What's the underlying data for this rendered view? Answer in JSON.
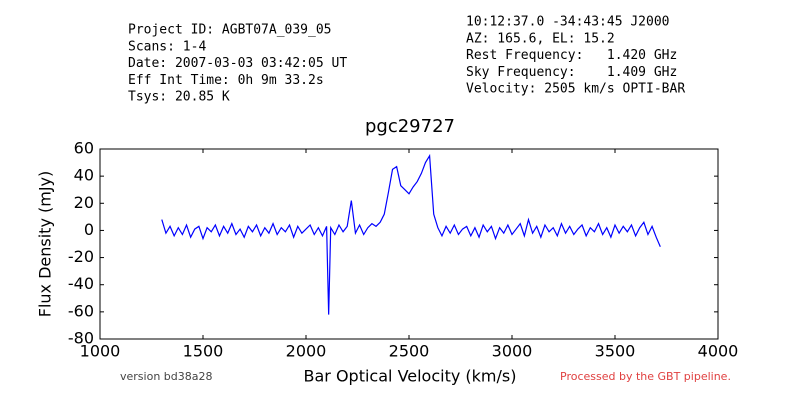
{
  "chart_data": {
    "type": "line",
    "title": "pgc29727",
    "xlabel": "Bar Optical Velocity (km/s)",
    "ylabel": "Flux Density (mJy)",
    "header_left": [
      "Project ID: AGBT07A_039_05",
      "Scans: 1-4",
      "Date: 2007-03-03 03:42:05 UT",
      "Eff Int Time: 0h 9m 33.2s",
      "Tsys: 20.85 K"
    ],
    "header_right": [
      "10:12:37.0 -34:43:45 J2000",
      "AZ: 165.6, EL: 15.2",
      "Rest Frequency:   1.420 GHz",
      "Sky Frequency:    1.409 GHz",
      "Velocity: 2505 km/s OPTI-BAR"
    ],
    "footer_left": "version bd38a28",
    "footer_right": "Processed by the GBT pipeline.",
    "color": "#0000ff",
    "x": [
      1300,
      1320,
      1340,
      1360,
      1380,
      1400,
      1420,
      1440,
      1460,
      1480,
      1500,
      1520,
      1540,
      1560,
      1580,
      1600,
      1620,
      1640,
      1660,
      1680,
      1700,
      1720,
      1740,
      1760,
      1780,
      1800,
      1820,
      1840,
      1860,
      1880,
      1900,
      1920,
      1940,
      1960,
      1980,
      2000,
      2020,
      2040,
      2060,
      2080,
      2100,
      2110,
      2120,
      2140,
      2160,
      2180,
      2200,
      2220,
      2240,
      2260,
      2280,
      2300,
      2320,
      2340,
      2360,
      2380,
      2400,
      2420,
      2440,
      2460,
      2480,
      2500,
      2520,
      2540,
      2560,
      2580,
      2600,
      2620,
      2640,
      2660,
      2680,
      2700,
      2720,
      2740,
      2760,
      2780,
      2800,
      2820,
      2840,
      2860,
      2880,
      2900,
      2920,
      2940,
      2960,
      2980,
      3000,
      3020,
      3040,
      3060,
      3080,
      3100,
      3120,
      3140,
      3160,
      3180,
      3200,
      3220,
      3240,
      3260,
      3280,
      3300,
      3320,
      3340,
      3360,
      3380,
      3400,
      3420,
      3440,
      3460,
      3480,
      3500,
      3520,
      3540,
      3560,
      3580,
      3600,
      3620,
      3640,
      3660,
      3680,
      3700,
      3720
    ],
    "values": [
      8,
      -2,
      3,
      -4,
      2,
      -3,
      4,
      -5,
      1,
      3,
      -6,
      2,
      -1,
      4,
      -4,
      3,
      -2,
      5,
      -3,
      1,
      -5,
      3,
      -1,
      4,
      -4,
      2,
      -2,
      5,
      -3,
      2,
      -1,
      4,
      -5,
      3,
      -2,
      1,
      4,
      -3,
      2,
      -4,
      3,
      -62,
      2,
      -3,
      4,
      -1,
      3,
      22,
      -2,
      4,
      -3,
      2,
      5,
      3,
      6,
      12,
      28,
      45,
      47,
      33,
      30,
      27,
      32,
      36,
      42,
      50,
      55,
      12,
      2,
      -4,
      3,
      -2,
      4,
      -3,
      1,
      3,
      -4,
      2,
      -5,
      4,
      -1,
      3,
      -6,
      2,
      -2,
      4,
      -3,
      1,
      5,
      -4,
      8,
      -2,
      3,
      -5,
      4,
      -1,
      2,
      -4,
      5,
      -2,
      3,
      -3,
      1,
      4,
      -4,
      2,
      -1,
      5,
      -3,
      2,
      -5,
      4,
      -2,
      3,
      -1,
      4,
      -4,
      2,
      6,
      -3,
      3,
      -5,
      -12
    ],
    "xlim": [
      1000,
      4000
    ],
    "xticks": [
      1000,
      1500,
      2000,
      2500,
      3000,
      3500,
      4000
    ],
    "ylim": [
      -80,
      60
    ],
    "yticks": [
      -80,
      -60,
      -40,
      -20,
      0,
      20,
      40,
      60
    ]
  }
}
